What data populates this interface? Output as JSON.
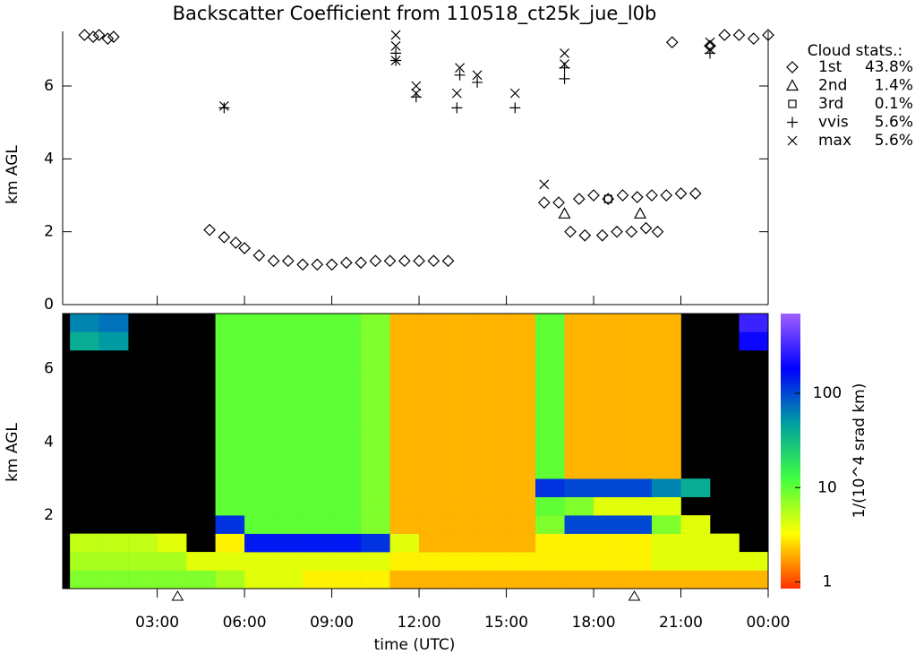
{
  "chart_data": [
    {
      "type": "scatter",
      "title": "Backscatter Coefficient from 110518_ct25k_jue_l0b",
      "ylabel": "km AGL",
      "xlim": [
        -0.25,
        24
      ],
      "ylim": [
        0,
        7.5
      ],
      "yticks": [
        0,
        2,
        4,
        6
      ],
      "legend_title": "Cloud stats.:",
      "series": [
        {
          "name": "1st",
          "share_label": "43.8%",
          "marker": "diamond",
          "color": "#000000",
          "x": [
            0.5,
            0.8,
            1.0,
            1.3,
            1.5,
            4.8,
            5.3,
            5.7,
            6.0,
            6.5,
            7.0,
            7.5,
            8.0,
            8.5,
            9.0,
            9.5,
            10.0,
            10.5,
            11.0,
            11.5,
            12.0,
            12.5,
            13.0,
            16.3,
            16.8,
            17.2,
            17.5,
            17.7,
            18.0,
            18.3,
            18.5,
            18.8,
            19.0,
            19.3,
            19.5,
            19.8,
            20.0,
            20.2,
            20.5,
            21.0,
            21.5,
            20.7,
            22.0,
            22.5,
            23.0,
            23.5,
            24.0
          ],
          "values": [
            7.4,
            7.35,
            7.4,
            7.3,
            7.35,
            2.05,
            1.85,
            1.7,
            1.55,
            1.35,
            1.2,
            1.2,
            1.1,
            1.1,
            1.1,
            1.15,
            1.15,
            1.2,
            1.2,
            1.2,
            1.2,
            1.2,
            1.2,
            2.8,
            2.8,
            2.0,
            2.9,
            1.9,
            3.0,
            1.9,
            2.9,
            2.0,
            3.0,
            2.0,
            2.95,
            2.1,
            3.0,
            2.0,
            3.0,
            3.05,
            3.05,
            7.2,
            7.1,
            7.4,
            7.4,
            7.3,
            7.4
          ]
        },
        {
          "name": "2nd",
          "share_label": "1.4%",
          "marker": "triangle",
          "color": "#000000",
          "x": [
            17.0,
            19.6
          ],
          "values": [
            2.5,
            2.5
          ]
        },
        {
          "name": "3rd",
          "share_label": "0.1%",
          "marker": "square",
          "color": "#000000",
          "x": [
            18.5
          ],
          "values": [
            2.9
          ]
        },
        {
          "name": "vvis",
          "share_label": "5.6%",
          "marker": "plus",
          "color": "#000000",
          "x": [
            5.3,
            11.2,
            11.2,
            11.9,
            13.3,
            13.4,
            14.0,
            15.3,
            17.0,
            17.0,
            22.0
          ],
          "values": [
            5.4,
            6.7,
            6.9,
            5.7,
            5.4,
            6.3,
            6.1,
            5.4,
            6.2,
            6.5,
            6.9
          ]
        },
        {
          "name": "max",
          "share_label": "5.6%",
          "marker": "cross",
          "color": "#000000",
          "x": [
            5.3,
            11.2,
            11.2,
            11.2,
            11.9,
            11.9,
            13.3,
            13.4,
            14.0,
            15.3,
            16.3,
            17.0,
            17.0,
            22.0,
            22.0
          ],
          "values": [
            5.45,
            7.4,
            7.1,
            6.7,
            6.0,
            5.8,
            5.8,
            6.5,
            6.3,
            5.8,
            3.3,
            6.9,
            6.6,
            7.2,
            7.0
          ]
        }
      ]
    },
    {
      "type": "heatmap",
      "ylabel": "km AGL",
      "xlabel": "time (UTC)",
      "xlim": [
        -0.25,
        24
      ],
      "ylim": [
        0,
        7.5
      ],
      "yticks": [
        2,
        4,
        6
      ],
      "xticks": [
        {
          "value": 3,
          "label": "03:00"
        },
        {
          "value": 6,
          "label": "06:00"
        },
        {
          "value": 9,
          "label": "09:00"
        },
        {
          "value": 12,
          "label": "12:00"
        },
        {
          "value": 15,
          "label": "15:00"
        },
        {
          "value": 18,
          "label": "18:00"
        },
        {
          "value": 21,
          "label": "21:00"
        },
        {
          "value": 24,
          "label": "00:00"
        }
      ],
      "axis_markers": [
        3.7,
        19.4
      ],
      "x_edges": [
        0,
        1,
        2,
        3,
        4,
        5,
        6,
        7,
        8,
        9,
        10,
        11,
        12,
        13,
        14,
        15,
        16,
        17,
        18,
        19,
        20,
        21,
        22,
        23,
        24
      ],
      "y_edges": [
        0,
        0.5,
        1,
        1.5,
        2,
        2.5,
        3,
        3.5,
        4,
        4.5,
        5,
        5.5,
        6,
        6.5,
        7,
        7.5
      ],
      "values": [
        [
          8,
          6,
          5,
          null,
          null,
          null,
          null,
          null,
          null,
          null,
          null,
          null,
          null,
          40,
          60
        ],
        [
          8,
          6,
          5,
          null,
          null,
          null,
          null,
          null,
          null,
          null,
          null,
          null,
          null,
          50,
          70
        ],
        [
          8,
          6,
          5,
          null,
          null,
          null,
          null,
          null,
          null,
          null,
          null,
          null,
          null,
          null,
          null
        ],
        [
          8,
          6,
          4,
          null,
          null,
          null,
          null,
          null,
          null,
          null,
          null,
          null,
          null,
          null,
          null
        ],
        [
          8,
          4,
          null,
          null,
          null,
          null,
          null,
          null,
          null,
          null,
          null,
          null,
          null,
          null,
          null
        ],
        [
          6,
          4,
          3,
          120,
          10,
          10,
          10,
          10,
          10,
          10,
          10,
          10,
          10,
          10,
          10
        ],
        [
          4,
          4,
          150,
          10,
          10,
          10,
          10,
          10,
          10,
          10,
          10,
          10,
          10,
          10,
          10
        ],
        [
          4,
          4,
          150,
          10,
          10,
          10,
          10,
          10,
          10,
          10,
          10,
          10,
          10,
          10,
          10
        ],
        [
          3,
          4,
          150,
          10,
          10,
          10,
          10,
          10,
          10,
          10,
          10,
          10,
          10,
          10,
          10
        ],
        [
          3,
          4,
          150,
          10,
          10,
          10,
          10,
          10,
          10,
          10,
          10,
          10,
          10,
          10,
          10
        ],
        [
          3,
          4,
          120,
          8,
          8,
          8,
          8,
          8,
          8,
          8,
          8,
          8,
          8,
          8,
          8
        ],
        [
          2,
          3,
          4,
          2,
          2,
          2,
          2,
          2,
          2,
          2,
          2,
          2,
          2,
          2,
          2
        ],
        [
          2,
          3,
          2,
          2,
          2,
          2,
          2,
          2,
          2,
          2,
          2,
          2,
          2,
          2,
          2
        ],
        [
          2,
          3,
          2,
          2,
          2,
          2,
          2,
          2,
          2,
          2,
          2,
          2,
          2,
          2,
          2
        ],
        [
          2,
          3,
          2,
          2,
          2,
          2,
          2,
          2,
          2,
          2,
          2,
          2,
          2,
          2,
          2
        ],
        [
          2,
          3,
          2,
          2,
          2,
          2,
          2,
          2,
          2,
          2,
          2,
          2,
          2,
          2,
          2
        ],
        [
          2,
          3,
          3,
          8,
          10,
          120,
          10,
          10,
          10,
          10,
          10,
          10,
          10,
          10,
          10
        ],
        [
          2,
          3,
          3,
          100,
          8,
          100,
          2,
          2,
          2,
          2,
          2,
          2,
          2,
          2,
          2
        ],
        [
          2,
          3,
          3,
          100,
          4,
          100,
          2,
          2,
          2,
          2,
          2,
          2,
          2,
          2,
          2
        ],
        [
          2,
          3,
          3,
          100,
          4,
          100,
          2,
          2,
          2,
          2,
          2,
          2,
          2,
          2,
          2
        ],
        [
          2,
          4,
          4,
          8,
          4,
          60,
          2,
          2,
          2,
          2,
          2,
          2,
          2,
          2,
          2
        ],
        [
          2,
          4,
          4,
          4,
          null,
          40,
          null,
          null,
          null,
          null,
          null,
          null,
          null,
          null,
          null
        ],
        [
          2,
          4,
          4,
          null,
          null,
          null,
          null,
          null,
          null,
          null,
          null,
          null,
          null,
          null,
          null
        ],
        [
          2,
          4,
          null,
          null,
          null,
          null,
          null,
          null,
          null,
          null,
          null,
          null,
          null,
          200,
          300
        ]
      ],
      "colorbar": {
        "label": "1/(10^4 srad km)",
        "lim": [
          0.85,
          700
        ],
        "ticks": [
          1,
          10,
          100
        ],
        "log": true,
        "colors": [
          "#ff3000",
          "#ffff00",
          "#40ff40",
          "#00a0a0",
          "#0000ff",
          "#a060ff"
        ]
      }
    }
  ]
}
